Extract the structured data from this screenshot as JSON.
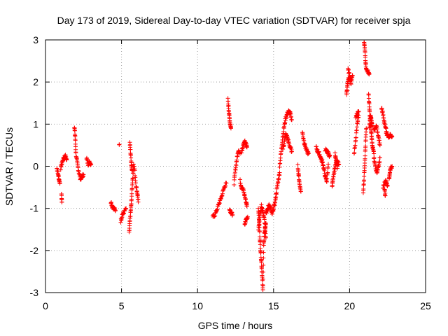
{
  "chart_data": {
    "type": "scatter",
    "title": "Day 173 of 2019, Sidereal Day-to-day VTEC variation (SDTVAR) for receiver spja",
    "xlabel": "GPS time / hours",
    "ylabel": "SDTVAR / TECUs",
    "xlim": [
      0,
      25
    ],
    "ylim": [
      -3,
      3
    ],
    "xticks": [
      0,
      5,
      10,
      15,
      20,
      25
    ],
    "yticks": [
      -3,
      -2,
      -1,
      0,
      1,
      2,
      3
    ],
    "xtick_labels": [
      "0",
      "5",
      "10",
      "15",
      "20",
      "25"
    ],
    "ytick_labels": [
      "-3",
      "-2",
      "-1",
      "0",
      "1",
      "2",
      "3"
    ],
    "grid": true,
    "marker": "+",
    "color": "#ff0000",
    "segments": [
      {
        "x0": 0.75,
        "x1": 0.95,
        "points": [
          [
            0.75,
            -0.05
          ],
          [
            0.82,
            -0.15
          ],
          [
            0.88,
            -0.3
          ],
          [
            0.95,
            -0.4
          ]
        ]
      },
      {
        "x0": 1.0,
        "x1": 1.4,
        "points": [
          [
            1.0,
            -0.05
          ],
          [
            1.1,
            0.1
          ],
          [
            1.2,
            0.2
          ],
          [
            1.3,
            0.25
          ],
          [
            1.4,
            0.15
          ]
        ]
      },
      {
        "x0": 1.05,
        "x1": 1.1,
        "points": [
          [
            1.05,
            -0.65
          ],
          [
            1.08,
            -0.85
          ]
        ]
      },
      {
        "x0": 1.9,
        "x1": 2.5,
        "points": [
          [
            1.9,
            0.95
          ],
          [
            1.95,
            0.7
          ],
          [
            2.0,
            0.3
          ],
          [
            2.1,
            0.05
          ],
          [
            2.2,
            -0.15
          ],
          [
            2.3,
            -0.3
          ],
          [
            2.4,
            -0.25
          ],
          [
            2.5,
            -0.2
          ]
        ]
      },
      {
        "x0": 2.7,
        "x1": 3.0,
        "points": [
          [
            2.7,
            0.2
          ],
          [
            2.8,
            0.05
          ],
          [
            2.9,
            0.1
          ],
          [
            3.0,
            0.05
          ]
        ]
      },
      {
        "x0": 4.3,
        "x1": 4.6,
        "points": [
          [
            4.3,
            -0.85
          ],
          [
            4.4,
            -0.95
          ],
          [
            4.5,
            -1.0
          ],
          [
            4.6,
            -1.05
          ]
        ]
      },
      {
        "x0": 4.85,
        "x1": 4.85,
        "points": [
          [
            4.85,
            0.52
          ]
        ]
      },
      {
        "x0": 4.95,
        "x1": 5.3,
        "points": [
          [
            4.95,
            -1.3
          ],
          [
            5.05,
            -1.15
          ],
          [
            5.15,
            -1.1
          ],
          [
            5.3,
            -1.0
          ]
        ]
      },
      {
        "x0": 5.5,
        "x1": 5.8,
        "points": [
          [
            5.5,
            -1.6
          ],
          [
            5.55,
            -1.3
          ],
          [
            5.6,
            -1.1
          ],
          [
            5.65,
            -0.85
          ],
          [
            5.7,
            -0.5
          ],
          [
            5.75,
            -0.2
          ],
          [
            5.8,
            0.05
          ]
        ]
      },
      {
        "x0": 5.55,
        "x1": 5.7,
        "points": [
          [
            5.55,
            0.55
          ],
          [
            5.6,
            0.3
          ],
          [
            5.65,
            0.05
          ],
          [
            5.7,
            -0.1
          ]
        ]
      },
      {
        "x0": 5.85,
        "x1": 6.1,
        "points": [
          [
            5.85,
            0.0
          ],
          [
            5.95,
            -0.45
          ],
          [
            6.05,
            -0.65
          ],
          [
            6.1,
            -0.85
          ]
        ]
      },
      {
        "x0": 11.0,
        "x1": 11.9,
        "points": [
          [
            11.0,
            -1.2
          ],
          [
            11.15,
            -1.15
          ],
          [
            11.3,
            -1.0
          ],
          [
            11.45,
            -0.85
          ],
          [
            11.6,
            -0.7
          ],
          [
            11.75,
            -0.5
          ],
          [
            11.9,
            -0.4
          ]
        ]
      },
      {
        "x0": 12.0,
        "x1": 12.3,
        "points": [
          [
            12.0,
            1.58
          ],
          [
            12.05,
            1.35
          ],
          [
            12.1,
            1.15
          ],
          [
            12.15,
            1.0
          ],
          [
            12.2,
            0.9
          ]
        ]
      },
      {
        "x0": 12.1,
        "x1": 12.3,
        "points": [
          [
            12.1,
            -1.0
          ],
          [
            12.2,
            -1.1
          ],
          [
            12.3,
            -1.15
          ]
        ]
      },
      {
        "x0": 12.4,
        "x1": 12.8,
        "points": [
          [
            12.4,
            -0.4
          ],
          [
            12.5,
            -0.05
          ],
          [
            12.6,
            0.2
          ],
          [
            12.7,
            0.4
          ],
          [
            12.8,
            0.3
          ]
        ]
      },
      {
        "x0": 12.8,
        "x1": 13.25,
        "points": [
          [
            12.8,
            -0.35
          ],
          [
            12.9,
            -0.5
          ],
          [
            13.0,
            -0.55
          ],
          [
            13.1,
            -0.7
          ],
          [
            13.2,
            -0.85
          ],
          [
            13.25,
            -0.95
          ]
        ]
      },
      {
        "x0": 12.9,
        "x1": 13.25,
        "points": [
          [
            12.9,
            0.35
          ],
          [
            13.0,
            0.5
          ],
          [
            13.1,
            0.6
          ],
          [
            13.2,
            0.5
          ],
          [
            13.25,
            0.45
          ]
        ]
      },
      {
        "x0": 13.1,
        "x1": 13.3,
        "points": [
          [
            13.1,
            -1.4
          ],
          [
            13.2,
            -1.25
          ],
          [
            13.3,
            -1.2
          ]
        ]
      },
      {
        "x0": 14.0,
        "x1": 14.5,
        "points": [
          [
            14.0,
            -1.0
          ],
          [
            14.05,
            -1.3
          ],
          [
            14.1,
            -1.7
          ],
          [
            14.15,
            -2.0
          ],
          [
            14.2,
            -2.3
          ],
          [
            14.25,
            -2.6
          ],
          [
            14.3,
            -2.95
          ],
          [
            14.35,
            -1.9
          ],
          [
            14.4,
            -1.6
          ],
          [
            14.45,
            -1.45
          ],
          [
            14.5,
            -1.35
          ]
        ]
      },
      {
        "x0": 14.0,
        "x1": 14.5,
        "points": [
          [
            14.0,
            -1.5
          ],
          [
            14.1,
            -1.2
          ],
          [
            14.2,
            -0.95
          ],
          [
            14.3,
            -1.05
          ],
          [
            14.4,
            -1.25
          ],
          [
            14.5,
            -1.7
          ]
        ]
      },
      {
        "x0": 14.5,
        "x1": 15.4,
        "points": [
          [
            14.5,
            -1.1
          ],
          [
            14.6,
            -1.05
          ],
          [
            14.7,
            -0.9
          ],
          [
            14.8,
            -1.0
          ],
          [
            14.9,
            -1.15
          ],
          [
            15.0,
            -1.0
          ],
          [
            15.1,
            -0.85
          ],
          [
            15.2,
            -0.6
          ],
          [
            15.3,
            -0.35
          ],
          [
            15.4,
            -0.15
          ]
        ]
      },
      {
        "x0": 15.4,
        "x1": 16.2,
        "points": [
          [
            15.4,
            0.0
          ],
          [
            15.5,
            0.35
          ],
          [
            15.6,
            0.7
          ],
          [
            15.7,
            0.95
          ],
          [
            15.8,
            1.15
          ],
          [
            15.9,
            1.25
          ],
          [
            16.0,
            1.3
          ],
          [
            16.1,
            1.25
          ],
          [
            16.2,
            1.1
          ]
        ]
      },
      {
        "x0": 15.6,
        "x1": 16.2,
        "points": [
          [
            15.6,
            0.4
          ],
          [
            15.7,
            0.55
          ],
          [
            15.8,
            0.75
          ],
          [
            15.9,
            0.7
          ],
          [
            16.0,
            0.55
          ],
          [
            16.1,
            0.45
          ],
          [
            16.2,
            0.35
          ]
        ]
      },
      {
        "x0": 16.6,
        "x1": 16.8,
        "points": [
          [
            16.6,
            0.0
          ],
          [
            16.65,
            -0.2
          ],
          [
            16.7,
            -0.4
          ],
          [
            16.8,
            -0.6
          ]
        ]
      },
      {
        "x0": 16.9,
        "x1": 17.3,
        "points": [
          [
            16.9,
            0.8
          ],
          [
            17.0,
            0.6
          ],
          [
            17.1,
            0.45
          ],
          [
            17.2,
            0.35
          ],
          [
            17.3,
            0.3
          ]
        ]
      },
      {
        "x0": 17.8,
        "x1": 18.2,
        "points": [
          [
            17.8,
            0.45
          ],
          [
            17.9,
            0.35
          ],
          [
            18.0,
            0.3
          ],
          [
            18.1,
            0.2
          ],
          [
            18.2,
            0.1
          ]
        ]
      },
      {
        "x0": 18.2,
        "x1": 18.6,
        "points": [
          [
            18.2,
            0.15
          ],
          [
            18.3,
            -0.05
          ],
          [
            18.4,
            -0.25
          ],
          [
            18.5,
            -0.35
          ],
          [
            18.6,
            0.05
          ]
        ]
      },
      {
        "x0": 18.4,
        "x1": 18.7,
        "points": [
          [
            18.4,
            0.4
          ],
          [
            18.5,
            0.35
          ],
          [
            18.6,
            0.3
          ],
          [
            18.7,
            0.25
          ]
        ]
      },
      {
        "x0": 18.85,
        "x1": 19.3,
        "points": [
          [
            18.85,
            -0.5
          ],
          [
            18.9,
            -0.3
          ],
          [
            19.0,
            -0.1
          ],
          [
            19.1,
            0.05
          ],
          [
            19.2,
            0.1
          ],
          [
            19.3,
            0.05
          ]
        ]
      },
      {
        "x0": 19.05,
        "x1": 19.2,
        "points": [
          [
            19.05,
            0.3
          ],
          [
            19.1,
            0.15
          ],
          [
            19.2,
            -0.05
          ]
        ]
      },
      {
        "x0": 19.8,
        "x1": 20.2,
        "points": [
          [
            19.8,
            1.7
          ],
          [
            19.85,
            1.9
          ],
          [
            19.9,
            2.05
          ],
          [
            20.0,
            2.1
          ],
          [
            20.1,
            2.05
          ],
          [
            20.2,
            2.15
          ]
        ]
      },
      {
        "x0": 19.9,
        "x1": 20.1,
        "points": [
          [
            19.9,
            2.3
          ],
          [
            20.0,
            2.15
          ],
          [
            20.1,
            1.95
          ]
        ]
      },
      {
        "x0": 20.3,
        "x1": 20.6,
        "points": [
          [
            20.3,
            0.3
          ],
          [
            20.4,
            0.6
          ],
          [
            20.5,
            1.0
          ],
          [
            20.6,
            1.2
          ]
        ]
      },
      {
        "x0": 20.4,
        "x1": 20.6,
        "points": [
          [
            20.4,
            1.15
          ],
          [
            20.5,
            1.25
          ],
          [
            20.6,
            1.3
          ]
        ]
      },
      {
        "x0": 20.9,
        "x1": 21.1,
        "points": [
          [
            20.9,
            -0.6
          ],
          [
            20.95,
            -0.3
          ],
          [
            21.0,
            0.1
          ],
          [
            21.05,
            0.5
          ],
          [
            21.1,
            0.9
          ]
        ]
      },
      {
        "x0": 20.95,
        "x1": 21.3,
        "points": [
          [
            20.95,
            2.95
          ],
          [
            21.0,
            2.8
          ],
          [
            21.05,
            2.5
          ],
          [
            21.1,
            2.3
          ],
          [
            21.2,
            2.25
          ],
          [
            21.3,
            2.2
          ]
        ]
      },
      {
        "x0": 21.25,
        "x1": 21.6,
        "points": [
          [
            21.25,
            1.7
          ],
          [
            21.3,
            1.4
          ],
          [
            21.35,
            1.1
          ],
          [
            21.4,
            0.9
          ],
          [
            21.45,
            0.7
          ],
          [
            21.5,
            0.5
          ],
          [
            21.6,
            0.3
          ]
        ]
      },
      {
        "x0": 21.3,
        "x1": 21.5,
        "points": [
          [
            21.3,
            0.9
          ],
          [
            21.35,
            1.1
          ],
          [
            21.4,
            1.2
          ],
          [
            21.45,
            1.05
          ],
          [
            21.5,
            0.95
          ]
        ]
      },
      {
        "x0": 21.6,
        "x1": 22.0,
        "points": [
          [
            21.6,
            0.2
          ],
          [
            21.7,
            0.0
          ],
          [
            21.8,
            -0.15
          ],
          [
            21.9,
            0.0
          ],
          [
            22.0,
            0.2
          ]
        ]
      },
      {
        "x0": 21.6,
        "x1": 22.0,
        "points": [
          [
            21.6,
            0.85
          ],
          [
            21.7,
            0.95
          ],
          [
            21.8,
            0.9
          ],
          [
            21.9,
            0.7
          ],
          [
            22.0,
            0.5
          ]
        ]
      },
      {
        "x0": 22.1,
        "x1": 22.4,
        "points": [
          [
            22.1,
            1.4
          ],
          [
            22.2,
            1.25
          ],
          [
            22.3,
            1.0
          ],
          [
            22.4,
            0.9
          ]
        ]
      },
      {
        "x0": 22.2,
        "x1": 22.5,
        "points": [
          [
            22.2,
            -0.5
          ],
          [
            22.3,
            -0.4
          ],
          [
            22.4,
            -0.35
          ],
          [
            22.5,
            -0.45
          ]
        ]
      },
      {
        "x0": 22.3,
        "x1": 22.4,
        "points": [
          [
            22.3,
            -0.55
          ],
          [
            22.35,
            -0.7
          ]
        ]
      },
      {
        "x0": 22.4,
        "x1": 22.8,
        "points": [
          [
            22.4,
            0.8
          ],
          [
            22.5,
            0.75
          ],
          [
            22.6,
            0.7
          ],
          [
            22.7,
            0.75
          ],
          [
            22.8,
            0.7
          ]
        ]
      },
      {
        "x0": 22.6,
        "x1": 22.8,
        "points": [
          [
            22.6,
            -0.3
          ],
          [
            22.65,
            -0.15
          ],
          [
            22.7,
            -0.05
          ],
          [
            22.8,
            0.0
          ]
        ]
      }
    ]
  }
}
